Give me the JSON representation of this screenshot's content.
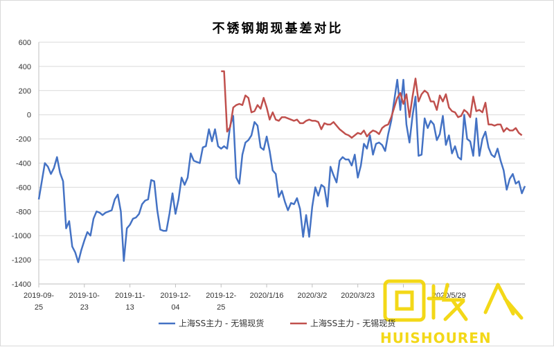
{
  "chart_data": {
    "type": "line",
    "title": "不锈钢期现基差对比",
    "xlabel": "",
    "ylabel": "",
    "ylim": [
      -1400,
      600
    ],
    "yticks": [
      "600",
      "400",
      "200",
      "0",
      "-200",
      "-400",
      "-600",
      "-800",
      "-1000",
      "-1200",
      "-1400"
    ],
    "xtick_labels": [
      {
        "line1": "2019-09-",
        "line2": "25"
      },
      {
        "line1": "2019-10-",
        "line2": "23"
      },
      {
        "line1": "2019-11-",
        "line2": "13"
      },
      {
        "line1": "2019-12-",
        "line2": "04"
      },
      {
        "line1": "2019-12-",
        "line2": "25"
      },
      {
        "line1": "2020/1/16",
        "line2": ""
      },
      {
        "line1": "2020/3/2",
        "line2": ""
      },
      {
        "line1": "2020/3/23",
        "line2": ""
      },
      {
        "line1": "",
        "line2": ""
      },
      {
        "line1": "2020/5/29",
        "line2": ""
      }
    ],
    "grid": true,
    "legend_position": "bottom",
    "series": [
      {
        "name": "上海SS主力 - 无锡现货",
        "color": "#4472c4",
        "values": [
          -700,
          -550,
          -400,
          -430,
          -490,
          -440,
          -350,
          -480,
          -550,
          -940,
          -880,
          -1090,
          -1140,
          -1220,
          -1120,
          -1040,
          -970,
          -1000,
          -860,
          -800,
          -810,
          -830,
          -810,
          -800,
          -790,
          -700,
          -660,
          -800,
          -1210,
          -940,
          -910,
          -860,
          -850,
          -820,
          -740,
          -710,
          -700,
          -540,
          -550,
          -790,
          -950,
          -960,
          -960,
          -820,
          -650,
          -820,
          -700,
          -520,
          -580,
          -520,
          -320,
          -380,
          -390,
          -400,
          -270,
          -260,
          -120,
          -220,
          -120,
          -260,
          -280,
          -260,
          -280,
          -90,
          -10,
          -520,
          -570,
          -330,
          -230,
          -210,
          -170,
          -60,
          -90,
          -270,
          -290,
          -180,
          -300,
          -460,
          -490,
          -680,
          -630,
          -720,
          -790,
          -730,
          -740,
          -690,
          -780,
          -1010,
          -830,
          -1010,
          -760,
          -600,
          -670,
          -580,
          -600,
          -760,
          -430,
          -500,
          -560,
          -380,
          -350,
          -370,
          -370,
          -420,
          -330,
          -520,
          -420,
          -240,
          -280,
          -170,
          -330,
          -240,
          -230,
          -250,
          -300,
          -160,
          -50,
          120,
          290,
          40,
          290,
          -80,
          -230,
          -10,
          150,
          -340,
          -330,
          -30,
          -110,
          -50,
          -80,
          -210,
          -160,
          -10,
          -250,
          -170,
          -320,
          -260,
          -350,
          -370,
          0,
          -200,
          -220,
          -340,
          -30,
          -340,
          -200,
          -140,
          -270,
          -330,
          -350,
          -280,
          -380,
          -460,
          -620,
          -530,
          -490,
          -570,
          -550,
          -650,
          -590
        ]
      },
      {
        "name": "上海SS主力 - 无锡现货",
        "color": "#c0504d",
        "start_index": 60,
        "values": [
          360,
          360,
          -140,
          -100,
          60,
          80,
          90,
          80,
          160,
          140,
          20,
          30,
          80,
          50,
          140,
          60,
          -40,
          20,
          -40,
          -50,
          -20,
          -20,
          -30,
          -40,
          -50,
          -40,
          -70,
          -70,
          -50,
          -40,
          -50,
          -50,
          -60,
          -120,
          -70,
          -80,
          -80,
          -60,
          -90,
          -120,
          -140,
          -160,
          -170,
          -190,
          -170,
          -150,
          -160,
          -130,
          -180,
          -150,
          -130,
          -140,
          -160,
          -110,
          -90,
          -80,
          -20,
          60,
          140,
          180,
          90,
          170,
          -20,
          150,
          300,
          110,
          170,
          200,
          180,
          110,
          110,
          40,
          160,
          110,
          170,
          60,
          30,
          20,
          -20,
          -10,
          40,
          20,
          -20,
          150,
          30,
          40,
          20,
          100,
          -80,
          -80,
          -90,
          -80,
          -80,
          -140,
          -110,
          -130,
          -130,
          -110,
          -150,
          -170
        ]
      }
    ]
  },
  "legend": {
    "items": [
      {
        "label": "上海SS主力 - 无锡现货",
        "color": "#4472c4"
      },
      {
        "label": "上海SS主力 - 无锡现货",
        "color": "#c0504d"
      }
    ]
  },
  "watermark": {
    "glyphs": "回收",
    "text": "HUISHOUREN",
    "color": "#f2d400"
  }
}
